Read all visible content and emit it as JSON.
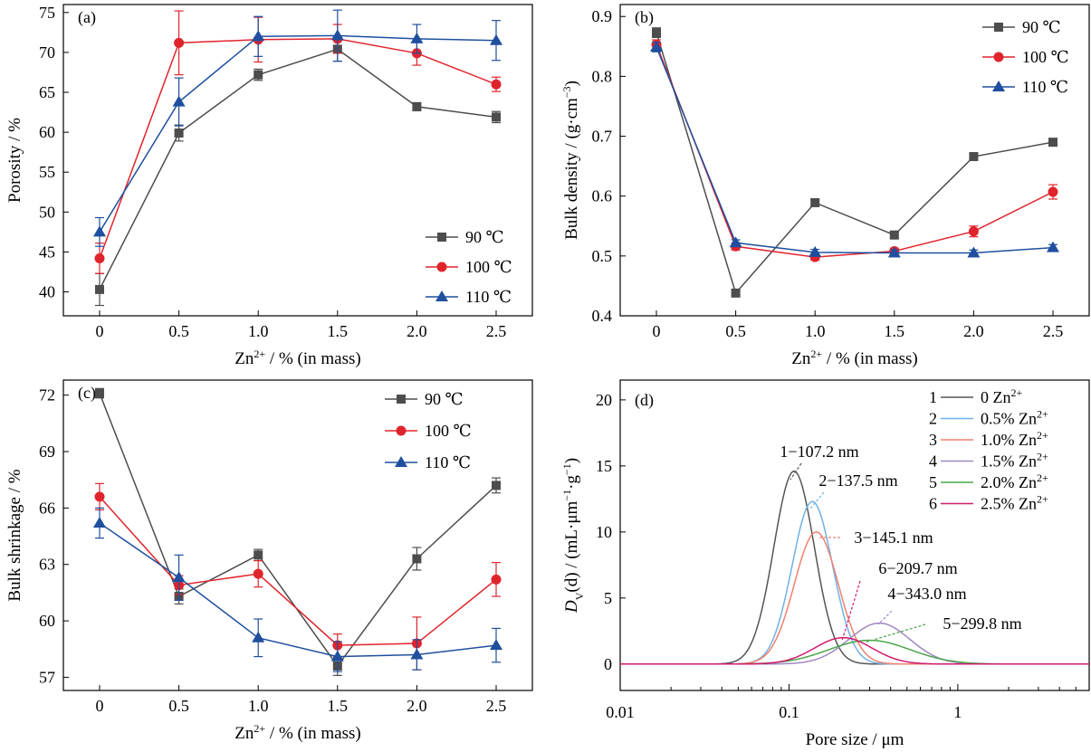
{
  "chart_data": [
    {
      "panel_label": "(a)",
      "type": "line",
      "x": [
        "0",
        "0.5",
        "1.0",
        "1.5",
        "2.0",
        "2.5"
      ],
      "xlabel_base": "Zn",
      "xlabel_sup": "2+",
      "xlabel_rest": " / % (in mass)",
      "ylabel": "Porosity / %",
      "ylim": [
        37,
        76
      ],
      "yticks": [
        40,
        45,
        50,
        55,
        60,
        65,
        70,
        75
      ],
      "legend_position": "bottom-right",
      "series": [
        {
          "name": "90 ℃",
          "color": "#4d4d4d",
          "marker": "square",
          "values": [
            40.3,
            59.9,
            67.2,
            70.4,
            63.2,
            61.9
          ],
          "errors": [
            2.0,
            1.0,
            0.7,
            1.5,
            0.5,
            0.7
          ]
        },
        {
          "name": "100 ℃",
          "color": "#e0242c",
          "marker": "circle",
          "values": [
            44.2,
            71.2,
            71.6,
            71.7,
            69.9,
            66.0
          ],
          "errors": [
            1.9,
            4.0,
            2.8,
            1.8,
            1.5,
            0.9
          ]
        },
        {
          "name": "110 ℃",
          "color": "#1f4f9e",
          "marker": "triangle",
          "values": [
            47.5,
            63.8,
            72.0,
            72.1,
            71.7,
            71.5
          ],
          "errors": [
            1.8,
            3.0,
            2.5,
            3.2,
            1.8,
            2.5
          ]
        }
      ]
    },
    {
      "panel_label": "(b)",
      "type": "line",
      "x": [
        "0",
        "0.5",
        "1.0",
        "1.5",
        "2.0",
        "2.5"
      ],
      "xlabel_base": "Zn",
      "xlabel_sup": "2+",
      "xlabel_rest": " / % (in mass)",
      "ylabel_base": "Bulk density / (g·cm",
      "ylabel_sup": "−3",
      "ylabel_rest": ")",
      "ylim": [
        0.4,
        0.92
      ],
      "yticks": [
        0.4,
        0.5,
        0.6,
        0.7,
        0.8,
        0.9
      ],
      "legend_position": "top-right",
      "series": [
        {
          "name": "90 ℃",
          "color": "#4d4d4d",
          "marker": "square",
          "values": [
            0.873,
            0.438,
            0.589,
            0.535,
            0.666,
            0.69
          ],
          "errors": [
            0.008,
            0.004,
            0.005,
            0.005,
            0.005,
            0.004
          ]
        },
        {
          "name": "100 ℃",
          "color": "#e0242c",
          "marker": "circle",
          "values": [
            0.853,
            0.516,
            0.498,
            0.508,
            0.541,
            0.607
          ],
          "errors": [
            0.008,
            0.006,
            0.005,
            0.005,
            0.009,
            0.012
          ]
        },
        {
          "name": "110 ℃",
          "color": "#1f4f9e",
          "marker": "triangle",
          "values": [
            0.849,
            0.522,
            0.506,
            0.505,
            0.505,
            0.514
          ],
          "errors": [
            0.008,
            0.005,
            0.005,
            0.005,
            0.005,
            0.005
          ]
        }
      ]
    },
    {
      "panel_label": "(c)",
      "type": "line",
      "x": [
        "0",
        "0.5",
        "1.0",
        "1.5",
        "2.0",
        "2.5"
      ],
      "xlabel_base": "Zn",
      "xlabel_sup": "2+",
      "xlabel_rest": " / % (in mass)",
      "ylabel": "Bulk shrinkage / %",
      "ylim": [
        56.3,
        72.8
      ],
      "yticks": [
        57,
        60,
        63,
        66,
        69,
        72
      ],
      "legend_position": "top-right",
      "series": [
        {
          "name": "90 ℃",
          "color": "#4d4d4d",
          "marker": "square",
          "values": [
            72.1,
            61.3,
            63.5,
            57.6,
            63.3,
            67.2
          ],
          "errors": [
            0.25,
            0.4,
            0.3,
            0.5,
            0.6,
            0.4
          ]
        },
        {
          "name": "100 ℃",
          "color": "#e0242c",
          "marker": "circle",
          "values": [
            66.6,
            61.9,
            62.5,
            58.7,
            58.8,
            62.2
          ],
          "errors": [
            0.7,
            0.5,
            0.7,
            0.6,
            1.4,
            0.9
          ]
        },
        {
          "name": "110 ℃",
          "color": "#1f4f9e",
          "marker": "triangle",
          "values": [
            65.2,
            62.3,
            59.1,
            58.1,
            58.2,
            58.7
          ],
          "errors": [
            0.8,
            1.2,
            1.0,
            0.8,
            0.8,
            0.9
          ]
        }
      ]
    },
    {
      "panel_label": "(d)",
      "type": "line",
      "x_scale": "log",
      "xlim": [
        0.01,
        6
      ],
      "xticks": [
        0.01,
        0.1,
        1
      ],
      "xtick_labels": [
        "0.01",
        "0.1",
        "1"
      ],
      "xlabel": "Pore size / μm",
      "ylabel_d": "D",
      "ylabel_sub": "V",
      "ylabel_mid": "(d) / (mL·μm",
      "ylabel_sup1": "−1",
      "ylabel_mid2": "·g",
      "ylabel_sup2": "−1",
      "ylabel_end": ")",
      "ylim": [
        -2,
        21.5
      ],
      "yticks": [
        0,
        5,
        10,
        15,
        20
      ],
      "legend_position": "top-right",
      "series": [
        {
          "index": "1",
          "name": "0 Zn",
          "name_sup": "2+",
          "color": "#555555",
          "peak": 0.1072,
          "height": 14.6,
          "sigma": 0.12
        },
        {
          "index": "2",
          "name": "0.5% Zn",
          "name_sup": "2+",
          "color": "#6fb2e6",
          "peak": 0.1375,
          "height": 12.3,
          "sigma": 0.12
        },
        {
          "index": "3",
          "name": "1.0% Zn",
          "name_sup": "2+",
          "color": "#f08070",
          "peak": 0.1451,
          "height": 10.0,
          "sigma": 0.13
        },
        {
          "index": "4",
          "name": "1.5% Zn",
          "name_sup": "2+",
          "color": "#9f88c2",
          "peak": 0.343,
          "height": 3.1,
          "sigma": 0.18
        },
        {
          "index": "5",
          "name": "2.0% Zn",
          "name_sup": "2+",
          "color": "#4aa54a",
          "peak": 0.2998,
          "height": 1.8,
          "sigma": 0.24
        },
        {
          "index": "6",
          "name": "2.5% Zn",
          "name_sup": "2+",
          "color": "#d11a6e",
          "peak": 0.2097,
          "height": 2.0,
          "sigma": 0.17
        }
      ],
      "annotations": [
        {
          "text": "1−107.2 nm",
          "color": "#555555"
        },
        {
          "text": "2−137.5 nm",
          "color": "#6fb2e6"
        },
        {
          "text": "3−145.1 nm",
          "color": "#f08070"
        },
        {
          "text": "6−209.7 nm",
          "color": "#d11a6e"
        },
        {
          "text": "4−343.0 nm",
          "color": "#9f88c2"
        },
        {
          "text": "5−299.8 nm",
          "color": "#4aa54a"
        }
      ]
    }
  ]
}
